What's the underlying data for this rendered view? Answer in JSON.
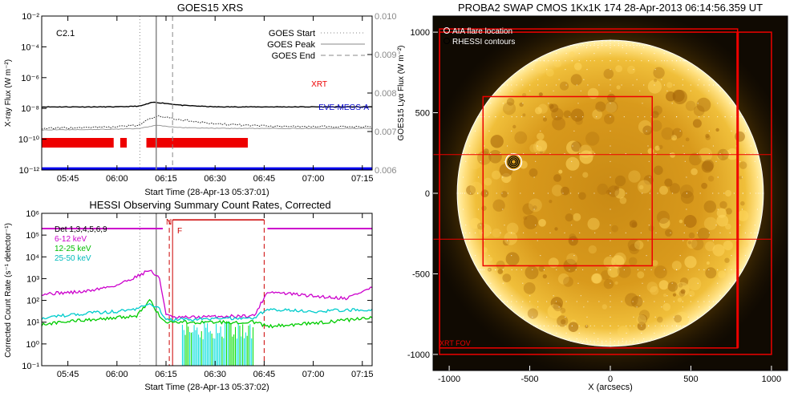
{
  "chart_data": [
    {
      "type": "line",
      "title": "GOES15 XRS",
      "xlabel": "Start Time (28-Apr-13 05:37:01)",
      "ylabel": "X-ray Flux (W m⁻²)",
      "y2label": "GOES15 Lyα Flux (W m⁻²)",
      "x_ticks": [
        "05:45",
        "06:00",
        "06:15",
        "06:30",
        "06:45",
        "07:00",
        "07:15"
      ],
      "y_ticks": [
        "10⁻²",
        "10⁻⁴",
        "10⁻⁶",
        "10⁻⁸",
        "10⁻¹⁰",
        "10⁻¹²"
      ],
      "y2_ticks": [
        "0.010",
        "0.009",
        "0.008",
        "0.007",
        "0.006"
      ],
      "ylim_exp": [
        -12,
        -2
      ],
      "y2lim": [
        0.006,
        0.01
      ],
      "flare_class": "C2.1",
      "legend": [
        {
          "name": "GOES Start",
          "style": "dotted",
          "color": "#888888"
        },
        {
          "name": "GOES Peak",
          "style": "solid",
          "color": "#888888"
        },
        {
          "name": "GOES End",
          "style": "dashed",
          "color": "#888888"
        }
      ],
      "vlines": {
        "start": "06:07",
        "peak": "06:12",
        "end": "06:17"
      },
      "annotations": [
        {
          "text": "XRT",
          "color": "#ee0000"
        },
        {
          "text": "EVE-MEGS-A",
          "color": "#0000cc"
        }
      ],
      "series": [
        {
          "label": "black",
          "color": "#000000",
          "points": [
            [
              "05:37",
              -7.9
            ],
            [
              "06:00",
              -7.9
            ],
            [
              "06:07",
              -7.85
            ],
            [
              "06:11",
              -7.6
            ],
            [
              "06:14",
              -7.65
            ],
            [
              "06:20",
              -7.8
            ],
            [
              "06:30",
              -7.9
            ],
            [
              "07:18",
              -7.9
            ]
          ]
        },
        {
          "label": "dotted",
          "color": "#222222",
          "points": [
            [
              "05:37",
              -9.3
            ],
            [
              "05:50",
              -9.25
            ],
            [
              "06:00",
              -9.2
            ],
            [
              "06:06",
              -9.1
            ],
            [
              "06:12",
              -8.5
            ],
            [
              "06:18",
              -8.7
            ],
            [
              "06:30",
              -9.0
            ],
            [
              "06:45",
              -9.15
            ],
            [
              "07:18",
              -9.2
            ]
          ]
        },
        {
          "label": "gray",
          "color": "#999999",
          "points": [
            [
              "05:37",
              -9.4
            ],
            [
              "06:00",
              -9.35
            ],
            [
              "06:07",
              -9.3
            ],
            [
              "06:12",
              -9.1
            ],
            [
              "06:20",
              -9.25
            ],
            [
              "06:35",
              -9.3
            ],
            [
              "07:18",
              -9.3
            ]
          ]
        }
      ],
      "xrt_bars": [
        [
          "05:37",
          "05:59"
        ],
        [
          "06:01",
          "06:03"
        ],
        [
          "06:09",
          "06:40"
        ]
      ],
      "eve_line_y_exp": -11.9
    },
    {
      "type": "line",
      "title": "HESSI Observing Summary Count Rates, Corrected",
      "xlabel": "Start Time (28-Apr-13 05:37:02)",
      "ylabel": "Corrected Count Rate (s⁻¹ detector⁻¹)",
      "x_ticks": [
        "05:45",
        "06:00",
        "06:15",
        "06:30",
        "06:45",
        "07:00",
        "07:15"
      ],
      "y_ticks": [
        "10⁶",
        "10⁵",
        "10⁴",
        "10³",
        "10²",
        "10¹",
        "10⁰",
        "10⁻¹"
      ],
      "ylim_exp": [
        -1,
        6
      ],
      "legend": [
        {
          "name": "Det 1,3,4,5,6,9",
          "color": "#000000"
        },
        {
          "name": "6-12 keV",
          "color": "#cc00cc"
        },
        {
          "name": "12-25 keV",
          "color": "#00cc00"
        },
        {
          "name": "25-50 keV",
          "color": "#00cccc"
        }
      ],
      "markers": [
        {
          "text": "N",
          "time": "06:16"
        },
        {
          "text": "F",
          "time": "06:17"
        }
      ],
      "series": [
        {
          "name": "6-12 keV",
          "color": "#cc00cc",
          "points": [
            [
              "05:37",
              2.3
            ],
            [
              "05:50",
              2.4
            ],
            [
              "06:00",
              2.7
            ],
            [
              "06:06",
              3.1
            ],
            [
              "06:10",
              3.4
            ],
            [
              "06:13",
              3.0
            ],
            [
              "06:15",
              1.4
            ],
            [
              "06:17",
              1.2
            ],
            [
              "06:42",
              1.3
            ],
            [
              "06:46",
              2.4
            ],
            [
              "07:00",
              2.2
            ],
            [
              "07:10",
              2.1
            ],
            [
              "07:15",
              2.4
            ],
            [
              "07:18",
              2.6
            ]
          ]
        },
        {
          "name": "12-25 keV",
          "color": "#00cc00",
          "points": [
            [
              "05:37",
              0.9
            ],
            [
              "05:50",
              1.1
            ],
            [
              "06:00",
              1.2
            ],
            [
              "06:06",
              1.3
            ],
            [
              "06:10",
              2.0
            ],
            [
              "06:13",
              1.3
            ],
            [
              "06:15",
              1.0
            ],
            [
              "06:42",
              1.0
            ],
            [
              "06:46",
              0.8
            ],
            [
              "07:00",
              0.95
            ],
            [
              "07:18",
              1.2
            ]
          ]
        },
        {
          "name": "25-50 keV",
          "color": "#00cccc",
          "points": [
            [
              "05:37",
              1.2
            ],
            [
              "05:50",
              1.4
            ],
            [
              "06:00",
              1.5
            ],
            [
              "06:06",
              1.6
            ],
            [
              "06:10",
              1.9
            ],
            [
              "06:13",
              1.6
            ],
            [
              "06:15",
              1.1
            ],
            [
              "06:42",
              1.2
            ],
            [
              "06:46",
              1.6
            ],
            [
              "07:00",
              1.5
            ],
            [
              "07:18",
              1.6
            ]
          ]
        },
        {
          "name": "Det 1,3,4,5,6,9",
          "color": "#cc00cc",
          "points": [
            [
              "05:37",
              5.3
            ],
            [
              "06:14",
              5.3
            ]
          ]
        }
      ]
    },
    {
      "type": "heatmap",
      "title": "PROBA2 SWAP CMOS 1Kx1K 174 28-Apr-2013 06:14:56.359 UT",
      "xlabel": "X (arcsecs)",
      "ylabel": "Y (arcsecs)",
      "x_ticks": [
        "-1000",
        "-500",
        "0",
        "500",
        "1000"
      ],
      "y_ticks": [
        "1000",
        "500",
        "0",
        "-500",
        "-1000"
      ],
      "xlim": [
        -1100,
        1100
      ],
      "ylim": [
        -1100,
        1100
      ],
      "legend": [
        {
          "name": "AIA flare location",
          "color": "#ffffff"
        },
        {
          "name": "RHESSI contours",
          "color": "#000000"
        }
      ],
      "solar_radius": 950,
      "flare_location": [
        -600,
        195
      ],
      "boxes": [
        {
          "label": "XRT FOV",
          "x": [
            -1060,
            1000
          ],
          "y": [
            -1000,
            1000
          ]
        },
        {
          "label": "",
          "x": [
            -790,
            260
          ],
          "y": [
            -450,
            600
          ]
        },
        {
          "label": "",
          "x": [
            -1060,
            790
          ],
          "y": [
            -960,
            1020
          ]
        }
      ],
      "hlines": [
        240,
        -285
      ],
      "box_label": "XRT FOV"
    }
  ]
}
